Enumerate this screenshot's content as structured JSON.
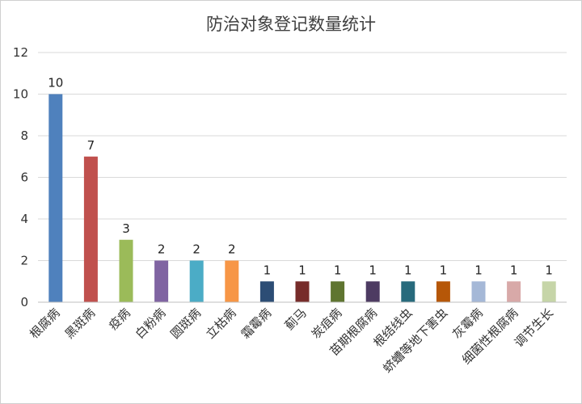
{
  "chart_data": {
    "type": "bar",
    "title": "防治对象登记数量统计",
    "xlabel": "",
    "ylabel": "",
    "ylim": [
      0,
      12
    ],
    "yticks": [
      0,
      2,
      4,
      6,
      8,
      10,
      12
    ],
    "grid": true,
    "legend": "none",
    "categories": [
      "根腐病",
      "黑斑病",
      "疫病",
      "白粉病",
      "圆斑病",
      "立枯病",
      "霜霉病",
      "蓟马",
      "炭疽病",
      "苗期根腐病",
      "根结线虫",
      "蛴螬等地下害虫",
      "灰霉病",
      "细菌性根腐病",
      "调节生长"
    ],
    "values": [
      10,
      7,
      3,
      2,
      2,
      2,
      1,
      1,
      1,
      1,
      1,
      1,
      1,
      1,
      1
    ],
    "data_labels": [
      "10",
      "7",
      "3",
      "2",
      "2",
      "2",
      "1",
      "1",
      "1",
      "1",
      "1",
      "1",
      "1",
      "1",
      "1"
    ],
    "colors": [
      "#4f81bd",
      "#c0504d",
      "#9bbb59",
      "#8064a2",
      "#4bacc6",
      "#f79646",
      "#2c4d75",
      "#772c2a",
      "#5f7530",
      "#4d3b62",
      "#276a7c",
      "#b65708",
      "#a5b8d7",
      "#d8a9a8",
      "#c6d5a8"
    ]
  }
}
